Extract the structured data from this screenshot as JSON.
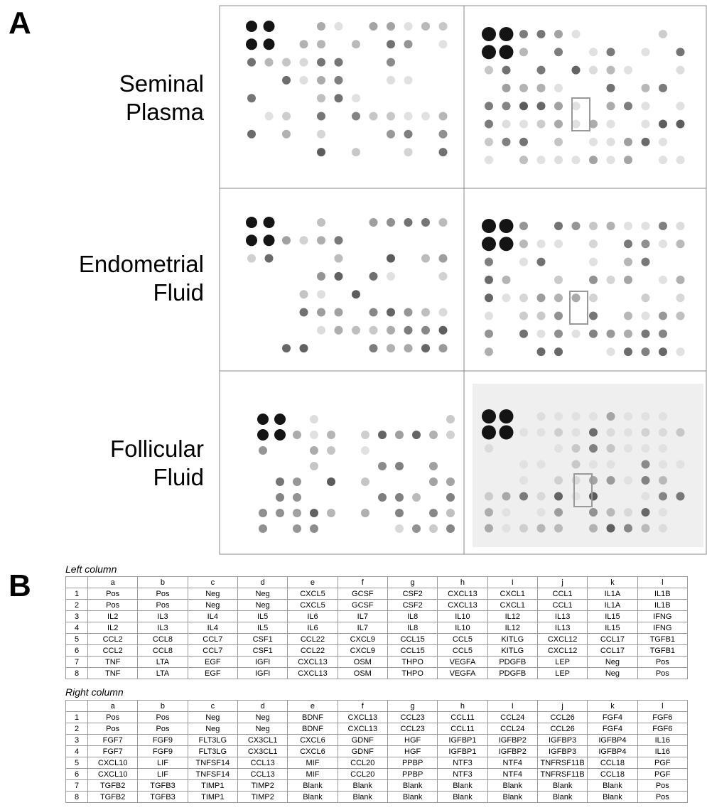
{
  "panel_a": {
    "label": "A",
    "rows": [
      [
        "Seminal",
        "Plasma"
      ],
      [
        "Endometrial",
        "Fluid"
      ],
      [
        "Follicular",
        "Fluid"
      ]
    ]
  },
  "panel_b": {
    "label": "B",
    "tables": [
      {
        "title": "Left column",
        "header": [
          "a",
          "b",
          "c",
          "d",
          "e",
          "f",
          "g",
          "h",
          "I",
          "j",
          "k",
          "l"
        ],
        "rows": [
          [
            "1",
            "Pos",
            "Pos",
            "Neg",
            "Neg",
            "CXCL5",
            "GCSF",
            "CSF2",
            "CXCL13",
            "CXCL1",
            "CCL1",
            "IL1A",
            "IL1B"
          ],
          [
            "2",
            "Pos",
            "Pos",
            "Neg",
            "Neg",
            "CXCL5",
            "GCSF",
            "CSF2",
            "CXCL13",
            "CXCL1",
            "CCL1",
            "IL1A",
            "IL1B"
          ],
          [
            "3",
            "IL2",
            "IL3",
            "IL4",
            "IL5",
            "IL6",
            "IL7",
            "IL8",
            "IL10",
            "IL12",
            "IL13",
            "IL15",
            "IFNG"
          ],
          [
            "4",
            "IL2",
            "IL3",
            "IL4",
            "IL5",
            "IL6",
            "IL7",
            "IL8",
            "IL10",
            "IL12",
            "IL13",
            "IL15",
            "IFNG"
          ],
          [
            "5",
            "CCL2",
            "CCL8",
            "CCL7",
            "CSF1",
            "CCL22",
            "CXCL9",
            "CCL15",
            "CCL5",
            "KITLG",
            "CXCL12",
            "CCL17",
            "TGFB1"
          ],
          [
            "6",
            "CCL2",
            "CCL8",
            "CCL7",
            "CSF1",
            "CCL22",
            "CXCL9",
            "CCL15",
            "CCL5",
            "KITLG",
            "CXCL12",
            "CCL17",
            "TGFB1"
          ],
          [
            "7",
            "TNF",
            "LTA",
            "EGF",
            "IGFI",
            "CXCL13",
            "OSM",
            "THPO",
            "VEGFA",
            "PDGFB",
            "LEP",
            "Neg",
            "Pos"
          ],
          [
            "8",
            "TNF",
            "LTA",
            "EGF",
            "IGFI",
            "CXCL13",
            "OSM",
            "THPO",
            "VEGFA",
            "PDGFB",
            "LEP",
            "Neg",
            "Pos"
          ]
        ]
      },
      {
        "title": "Right column",
        "header": [
          "a",
          "b",
          "c",
          "d",
          "e",
          "f",
          "g",
          "h",
          "I",
          "j",
          "k",
          "l"
        ],
        "rows": [
          [
            "1",
            "Pos",
            "Pos",
            "Neg",
            "Neg",
            "BDNF",
            "CXCL13",
            "CCL23",
            "CCL11",
            "CCL24",
            "CCL26",
            "FGF4",
            "FGF6"
          ],
          [
            "2",
            "Pos",
            "Pos",
            "Neg",
            "Neg",
            "BDNF",
            "CXCL13",
            "CCL23",
            "CCL11",
            "CCL24",
            "CCL26",
            "FGF4",
            "FGF6"
          ],
          [
            "3",
            "FGF7",
            "FGF9",
            "FLT3LG",
            "CX3CL1",
            "CXCL6",
            "GDNF",
            "HGF",
            "IGFBP1",
            "IGFBP2",
            "IGFBP3",
            "IGFBP4",
            "IL16"
          ],
          [
            "4",
            "FGF7",
            "FGF9",
            "FLT3LG",
            "CX3CL1",
            "CXCL6",
            "GDNF",
            "HGF",
            "IGFBP1",
            "IGFBP2",
            "IGFBP3",
            "IGFBP4",
            "IL16"
          ],
          [
            "5",
            "CXCL10",
            "LIF",
            "TNFSF14",
            "CCL13",
            "MIF",
            "CCL20",
            "PPBP",
            "NTF3",
            "NTF4",
            "TNFRSF11B",
            "CCL18",
            "PGF"
          ],
          [
            "6",
            "CXCL10",
            "LIF",
            "TNFSF14",
            "CCL13",
            "MIF",
            "CCL20",
            "PPBP",
            "NTF3",
            "NTF4",
            "TNFRSF11B",
            "CCL18",
            "PGF"
          ],
          [
            "7",
            "TGFB2",
            "TGFB3",
            "TIMP1",
            "TIMP2",
            "Blank",
            "Blank",
            "Blank",
            "Blank",
            "Blank",
            "Blank",
            "Blank",
            "Pos"
          ],
          [
            "8",
            "TGFB2",
            "TGFB3",
            "TIMP1",
            "TIMP2",
            "Blank",
            "Blank",
            "Blank",
            "Blank",
            "Blank",
            "Blank",
            "Blank",
            "Pos"
          ]
        ]
      }
    ]
  }
}
